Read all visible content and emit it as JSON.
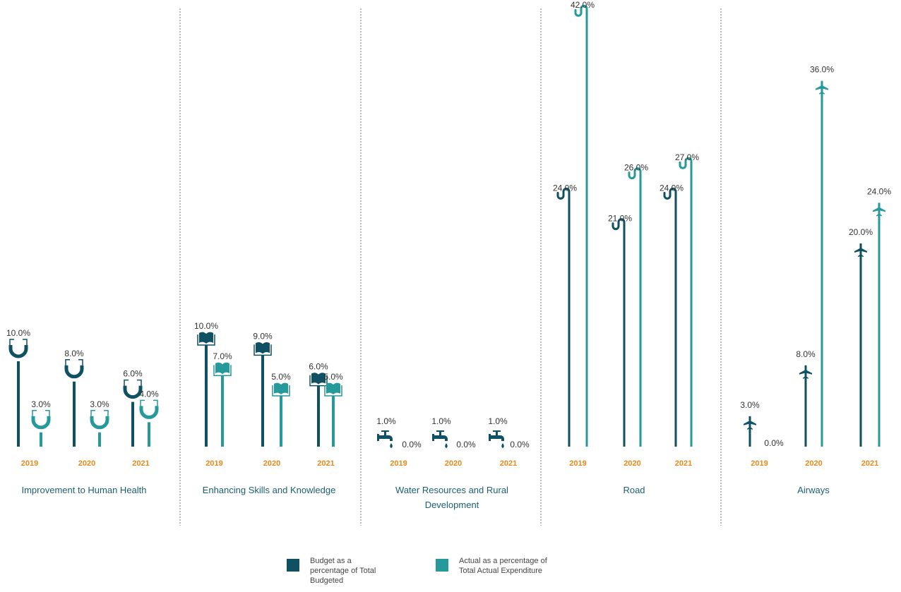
{
  "colors": {
    "budget": "#0f5162",
    "actual": "#26999a",
    "year": "#e8891a",
    "group": "#1c5f73",
    "label": "#333333",
    "divider": "#777777"
  },
  "legend": {
    "budget": "Budget as a\npercentage of Total\nBudgeted",
    "actual": "Actual as a percentage of\nTotal Actual Expenditure"
  },
  "chart_data": {
    "type": "bar",
    "ylabel": "",
    "xlabel": "",
    "groups": [
      {
        "name": "Improvement to Human Health",
        "icon": "stethoscope-icon",
        "years": [
          "2019",
          "2020",
          "2021"
        ],
        "budget": [
          10.0,
          8.0,
          6.0
        ],
        "actual": [
          3.0,
          3.0,
          4.0
        ]
      },
      {
        "name": "Enhancing Skills and Knowledge",
        "icon": "book-icon",
        "years": [
          "2019",
          "2020",
          "2021"
        ],
        "budget": [
          10.0,
          9.0,
          6.0
        ],
        "actual": [
          7.0,
          5.0,
          5.0
        ]
      },
      {
        "name": "Water Resources and Rural\nDevelopment",
        "icon": "faucet-icon",
        "years": [
          "2019",
          "2020",
          "2021"
        ],
        "budget": [
          1.0,
          1.0,
          1.0
        ],
        "actual": [
          0.0,
          0.0,
          0.0
        ]
      },
      {
        "name": "Road",
        "icon": "winding-road-icon",
        "years": [
          "2019",
          "2020",
          "2021"
        ],
        "budget": [
          24.0,
          21.0,
          24.0
        ],
        "actual": [
          42.0,
          26.0,
          27.0
        ]
      },
      {
        "name": "Airways",
        "icon": "airplane-icon",
        "years": [
          "2019",
          "2020",
          "2021"
        ],
        "budget": [
          3.0,
          8.0,
          20.0
        ],
        "actual": [
          0.0,
          36.0,
          24.0
        ]
      }
    ],
    "series": [
      {
        "name": "Budget as a percentage of Total Budgeted"
      },
      {
        "name": "Actual as a percentage of Total Actual Expenditure"
      }
    ]
  }
}
